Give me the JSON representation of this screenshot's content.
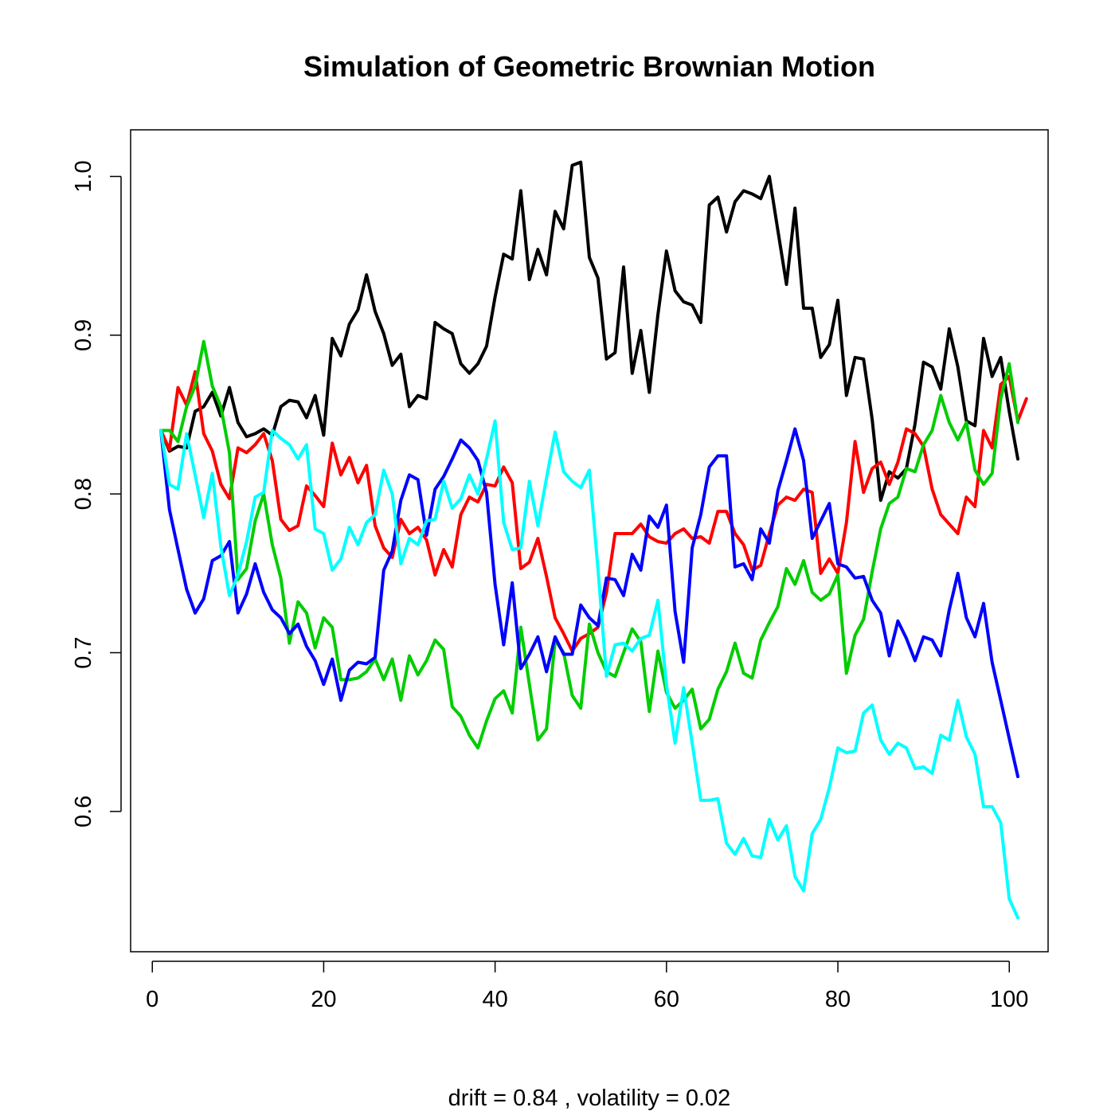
{
  "chart_data": {
    "type": "line",
    "title": "Simulation of Geometric Brownian Motion",
    "xlabel": "drift = 0.84 , volatility = 0.02",
    "ylabel": "",
    "xlim": [
      1,
      101
    ],
    "ylim": [
      0.5317,
      1.0093
    ],
    "x_ticks": [
      "0",
      "20",
      "40",
      "60",
      "80",
      "100"
    ],
    "y_ticks": [
      "0.6",
      "0.7",
      "0.8",
      "0.9",
      "1.0"
    ],
    "grid": false,
    "legend": "none",
    "x_start": 1,
    "series": [
      {
        "color": "#000000",
        "values": [
          0.84,
          0.827,
          0.83,
          0.829,
          0.852,
          0.855,
          0.864,
          0.849,
          0.867,
          0.845,
          0.836,
          0.838,
          0.841,
          0.837,
          0.855,
          0.859,
          0.858,
          0.848,
          0.862,
          0.837,
          0.898,
          0.887,
          0.907,
          0.916,
          0.938,
          0.915,
          0.901,
          0.881,
          0.888,
          0.855,
          0.862,
          0.86,
          0.908,
          0.904,
          0.901,
          0.882,
          0.876,
          0.882,
          0.893,
          0.924,
          0.951,
          0.948,
          0.991,
          0.935,
          0.954,
          0.938,
          0.978,
          0.967,
          1.007,
          1.009,
          0.949,
          0.936,
          0.885,
          0.889,
          0.943,
          0.876,
          0.903,
          0.864,
          0.913,
          0.953,
          0.928,
          0.921,
          0.919,
          0.908,
          0.982,
          0.987,
          0.965,
          0.984,
          0.991,
          0.989,
          0.986,
          1.0,
          0.966,
          0.932,
          0.98,
          0.917,
          0.917,
          0.886,
          0.894,
          0.922,
          0.862,
          0.886,
          0.885,
          0.847,
          0.796,
          0.814,
          0.81,
          0.816,
          0.844,
          0.883,
          0.88,
          0.866,
          0.904,
          0.88,
          0.846,
          0.843,
          0.898,
          0.874,
          0.886,
          0.852,
          0.822
        ]
      },
      {
        "color": "#ff0000",
        "values": [
          0.84,
          0.828,
          0.867,
          0.856,
          0.877,
          0.838,
          0.827,
          0.806,
          0.797,
          0.829,
          0.826,
          0.831,
          0.838,
          0.821,
          0.784,
          0.777,
          0.78,
          0.805,
          0.799,
          0.792,
          0.832,
          0.812,
          0.823,
          0.807,
          0.818,
          0.78,
          0.766,
          0.76,
          0.784,
          0.775,
          0.779,
          0.771,
          0.749,
          0.765,
          0.754,
          0.787,
          0.798,
          0.795,
          0.806,
          0.805,
          0.817,
          0.807,
          0.753,
          0.757,
          0.772,
          0.748,
          0.722,
          0.712,
          0.701,
          0.709,
          0.712,
          0.716,
          0.738,
          0.775,
          0.775,
          0.775,
          0.781,
          0.773,
          0.77,
          0.769,
          0.775,
          0.778,
          0.772,
          0.773,
          0.769,
          0.789,
          0.789,
          0.775,
          0.768,
          0.752,
          0.755,
          0.775,
          0.793,
          0.798,
          0.796,
          0.803,
          0.801,
          0.75,
          0.759,
          0.75,
          0.782,
          0.833,
          0.801,
          0.816,
          0.82,
          0.806,
          0.82,
          0.841,
          0.838,
          0.83,
          0.803,
          0.787,
          0.781,
          0.775,
          0.798,
          0.792,
          0.84,
          0.829,
          0.869,
          0.874,
          0.846,
          0.86
        ]
      },
      {
        "color": "#00cd00",
        "values": [
          0.84,
          0.84,
          0.833,
          0.855,
          0.868,
          0.896,
          0.868,
          0.855,
          0.826,
          0.746,
          0.753,
          0.783,
          0.8,
          0.768,
          0.747,
          0.706,
          0.732,
          0.725,
          0.703,
          0.722,
          0.716,
          0.683,
          0.683,
          0.684,
          0.688,
          0.696,
          0.683,
          0.696,
          0.67,
          0.698,
          0.686,
          0.695,
          0.708,
          0.702,
          0.666,
          0.66,
          0.648,
          0.64,
          0.657,
          0.671,
          0.676,
          0.662,
          0.716,
          0.68,
          0.645,
          0.652,
          0.708,
          0.7,
          0.673,
          0.665,
          0.718,
          0.7,
          0.688,
          0.685,
          0.7,
          0.715,
          0.707,
          0.663,
          0.701,
          0.675,
          0.665,
          0.67,
          0.677,
          0.652,
          0.658,
          0.677,
          0.688,
          0.706,
          0.687,
          0.684,
          0.708,
          0.719,
          0.729,
          0.753,
          0.743,
          0.758,
          0.738,
          0.733,
          0.737,
          0.749,
          0.687,
          0.711,
          0.721,
          0.751,
          0.778,
          0.794,
          0.798,
          0.816,
          0.814,
          0.831,
          0.84,
          0.862,
          0.845,
          0.834,
          0.845,
          0.815,
          0.806,
          0.813,
          0.86,
          0.882,
          0.845
        ]
      },
      {
        "color": "#0000ff",
        "values": [
          0.84,
          0.79,
          0.765,
          0.74,
          0.725,
          0.734,
          0.758,
          0.761,
          0.77,
          0.725,
          0.737,
          0.756,
          0.738,
          0.727,
          0.722,
          0.712,
          0.718,
          0.704,
          0.695,
          0.68,
          0.696,
          0.67,
          0.689,
          0.694,
          0.693,
          0.697,
          0.752,
          0.764,
          0.796,
          0.812,
          0.809,
          0.774,
          0.803,
          0.811,
          0.822,
          0.834,
          0.829,
          0.821,
          0.801,
          0.743,
          0.705,
          0.744,
          0.69,
          0.699,
          0.71,
          0.688,
          0.71,
          0.699,
          0.699,
          0.73,
          0.722,
          0.717,
          0.747,
          0.746,
          0.736,
          0.762,
          0.752,
          0.786,
          0.779,
          0.793,
          0.726,
          0.694,
          0.766,
          0.787,
          0.817,
          0.824,
          0.824,
          0.754,
          0.756,
          0.746,
          0.778,
          0.769,
          0.802,
          0.821,
          0.841,
          0.821,
          0.772,
          0.783,
          0.794,
          0.756,
          0.754,
          0.747,
          0.748,
          0.733,
          0.725,
          0.698,
          0.72,
          0.709,
          0.695,
          0.71,
          0.708,
          0.698,
          0.727,
          0.75,
          0.722,
          0.71,
          0.731,
          0.694,
          0.67,
          0.646,
          0.622
        ]
      },
      {
        "color": "#00ffff",
        "values": [
          0.84,
          0.806,
          0.803,
          0.838,
          0.812,
          0.785,
          0.813,
          0.767,
          0.736,
          0.749,
          0.77,
          0.798,
          0.801,
          0.84,
          0.835,
          0.831,
          0.822,
          0.831,
          0.778,
          0.775,
          0.752,
          0.759,
          0.779,
          0.768,
          0.782,
          0.787,
          0.815,
          0.8,
          0.756,
          0.772,
          0.768,
          0.783,
          0.784,
          0.808,
          0.791,
          0.797,
          0.812,
          0.8,
          0.822,
          0.846,
          0.782,
          0.765,
          0.766,
          0.808,
          0.78,
          0.81,
          0.839,
          0.814,
          0.808,
          0.804,
          0.815,
          0.753,
          0.685,
          0.705,
          0.706,
          0.701,
          0.709,
          0.711,
          0.733,
          0.68,
          0.643,
          0.678,
          0.643,
          0.607,
          0.607,
          0.608,
          0.58,
          0.573,
          0.583,
          0.572,
          0.571,
          0.595,
          0.582,
          0.591,
          0.559,
          0.55,
          0.586,
          0.595,
          0.615,
          0.64,
          0.637,
          0.638,
          0.662,
          0.667,
          0.645,
          0.636,
          0.643,
          0.64,
          0.627,
          0.628,
          0.624,
          0.648,
          0.645,
          0.67,
          0.647,
          0.636,
          0.603,
          0.603,
          0.593,
          0.545,
          0.533
        ]
      }
    ]
  }
}
